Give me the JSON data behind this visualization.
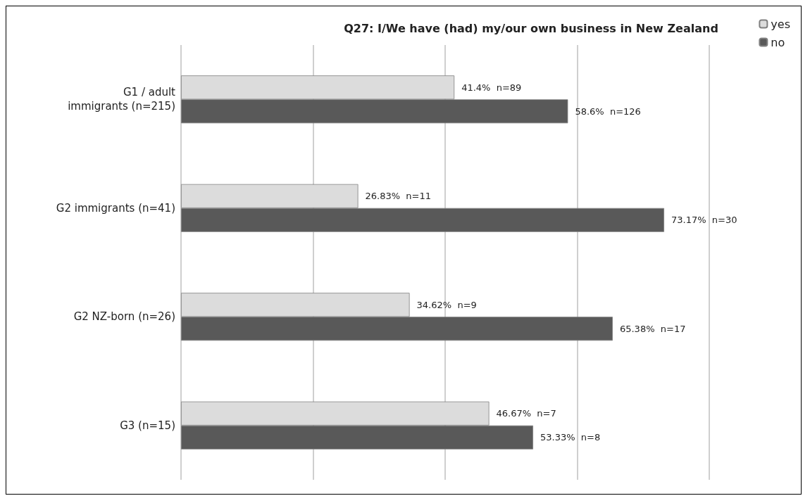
{
  "chart_data": {
    "type": "bar",
    "orientation": "horizontal",
    "title": "Q27: I/We have (had) my/our own business in New Zealand",
    "categories": [
      "G1 / adult\nimmigrants (n=215)",
      "G2 immigrants (n=41)",
      "G2 NZ-born (n=26)",
      "G3 (n=15)"
    ],
    "series": [
      {
        "name": "yes",
        "color": "#dcdcdc",
        "values": [
          41.4,
          26.83,
          34.62,
          46.67
        ],
        "value_labels": [
          "41.4%  n=89",
          "26.83%  n=11",
          "34.62%  n=9",
          "46.67%  n=7"
        ]
      },
      {
        "name": "no",
        "color": "#595959",
        "values": [
          58.6,
          73.17,
          65.38,
          53.33
        ],
        "value_labels": [
          "58.6%  n=126",
          "73.17%  n=30",
          "65.38%  n=17",
          "53.33%  n=8"
        ]
      }
    ],
    "xlim": [
      0,
      80
    ],
    "xticks": [
      {
        "value": 0,
        "label": null
      },
      {
        "value": 20,
        "label": null
      },
      {
        "value": 40,
        "label": null
      },
      {
        "value": 60,
        "label": null
      },
      {
        "value": 80,
        "label": null
      }
    ],
    "grid": "x",
    "legend": "top right",
    "tick_labels": "y"
  }
}
